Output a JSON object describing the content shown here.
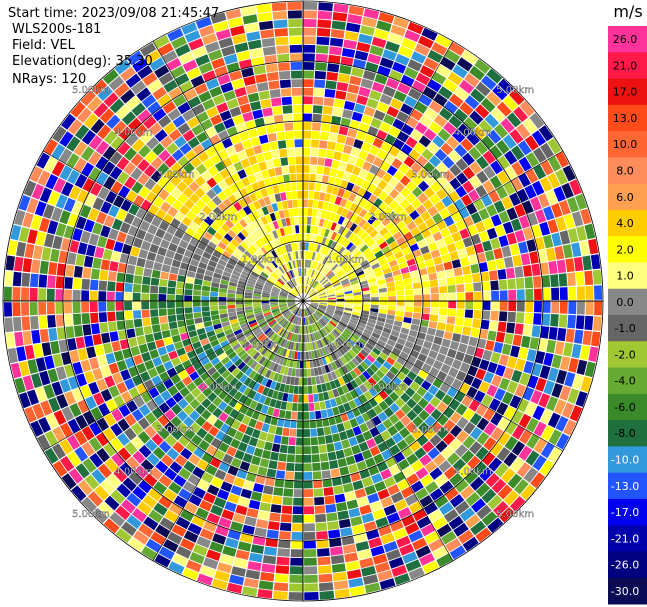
{
  "chart_data": {
    "type": "ppi-radar",
    "info": {
      "start_time": "Start time: 2023/09/08 21:45:47",
      "instrument": "WLS200s-181",
      "field": "Field: VEL",
      "elevation": "Elevation(deg): 35.30",
      "nrays": "NRays: 120"
    },
    "n_rays": 120,
    "max_range_km": 5.0,
    "range_rings_km": [
      1,
      2,
      3,
      4,
      5
    ],
    "ring_labels": [
      "1.00km",
      "2.00km",
      "3.00km",
      "4.00km",
      "5.00km"
    ],
    "colorbar": {
      "unit": "m/s",
      "ticks": [
        "26.0",
        "21.0",
        "17.0",
        "13.0",
        "10.0",
        "8.0",
        "6.0",
        "4.0",
        "2.0",
        "1.0",
        "0.0",
        "-1.0",
        "-2.0",
        "-4.0",
        "-6.0",
        "-8.0",
        "-10.0",
        "-13.0",
        "-17.0",
        "-21.0",
        "-26.0",
        "-30.0"
      ],
      "bins": [
        {
          "color": "#ff3399"
        },
        {
          "color": "#ff1a4a"
        },
        {
          "color": "#ee1111"
        },
        {
          "color": "#ff4a1a"
        },
        {
          "color": "#ff6633"
        },
        {
          "color": "#ff8c5a"
        },
        {
          "color": "#ffa050"
        },
        {
          "color": "#ffcc00"
        },
        {
          "color": "#ffff00"
        },
        {
          "color": "#ffff80"
        },
        {
          "color": "#888888"
        },
        {
          "color": "#666666"
        },
        {
          "color": "#a0c832"
        },
        {
          "color": "#66aa33"
        },
        {
          "color": "#3a8a2a"
        },
        {
          "color": "#1f6f3f"
        },
        {
          "color": "#3399dd"
        },
        {
          "color": "#2255ff"
        },
        {
          "color": "#0000ee"
        },
        {
          "color": "#0000aa"
        },
        {
          "color": "#000080"
        },
        {
          "color": "#0a0a55"
        }
      ]
    }
  }
}
